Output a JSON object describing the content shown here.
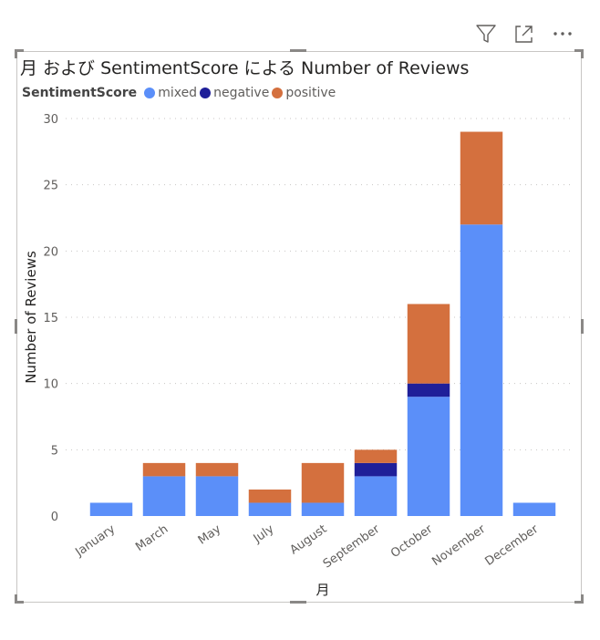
{
  "toolbar": {
    "filter_icon": "filter-icon",
    "focus_icon": "focus-mode-icon",
    "more_icon": "more-options-icon"
  },
  "chart_title": "月 および SentimentScore による Number of Reviews",
  "legend": {
    "title": "SentimentScore",
    "items": [
      {
        "label": "mixed",
        "color": "#5B8FF9"
      },
      {
        "label": "negative",
        "color": "#1F1F99"
      },
      {
        "label": "positive",
        "color": "#D4703E"
      }
    ]
  },
  "chart_data": {
    "type": "bar",
    "stacked": true,
    "title": "月 および SentimentScore による Number of Reviews",
    "xlabel": "月",
    "ylabel": "Number of Reviews",
    "ylim": [
      0,
      30
    ],
    "yticks": [
      0,
      5,
      10,
      15,
      20,
      25,
      30
    ],
    "grid": true,
    "legend_position": "top-left",
    "categories": [
      "January",
      "March",
      "May",
      "July",
      "August",
      "September",
      "October",
      "November",
      "December"
    ],
    "series": [
      {
        "name": "mixed",
        "color": "#5B8FF9",
        "values": [
          1,
          3,
          3,
          1,
          1,
          3,
          9,
          22,
          1
        ]
      },
      {
        "name": "negative",
        "color": "#1F1F99",
        "values": [
          0,
          0,
          0,
          0,
          0,
          1,
          1,
          0,
          0
        ]
      },
      {
        "name": "positive",
        "color": "#D4703E",
        "values": [
          0,
          1,
          1,
          1,
          3,
          1,
          6,
          7,
          0
        ]
      }
    ]
  }
}
